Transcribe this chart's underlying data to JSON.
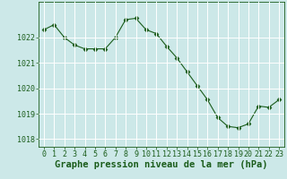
{
  "x": [
    0,
    1,
    2,
    3,
    4,
    5,
    6,
    7,
    8,
    9,
    10,
    11,
    12,
    13,
    14,
    15,
    16,
    17,
    18,
    19,
    20,
    21,
    22,
    23
  ],
  "y": [
    1022.3,
    1022.5,
    1022.0,
    1021.7,
    1021.55,
    1021.55,
    1021.55,
    1022.0,
    1022.7,
    1022.75,
    1022.3,
    1022.15,
    1021.65,
    1021.2,
    1020.65,
    1020.1,
    1019.55,
    1018.85,
    1018.5,
    1018.45,
    1018.6,
    1019.3,
    1019.25,
    1019.55
  ],
  "line_color": "#1a5c1a",
  "marker": "D",
  "marker_size": 2.5,
  "background_color": "#cce8e8",
  "grid_color": "#ffffff",
  "ylabel_ticks": [
    1018,
    1019,
    1020,
    1021,
    1022
  ],
  "xlabel_label": "Graphe pression niveau de la mer (hPa)",
  "xlim": [
    -0.5,
    23.5
  ],
  "ylim": [
    1017.7,
    1023.4
  ],
  "xtick_labels": [
    "0",
    "1",
    "2",
    "3",
    "4",
    "5",
    "6",
    "7",
    "8",
    "9",
    "10",
    "11",
    "12",
    "13",
    "14",
    "15",
    "16",
    "17",
    "18",
    "19",
    "20",
    "21",
    "22",
    "23"
  ],
  "title_color": "#1a5c1a",
  "tick_color": "#1a5c1a",
  "tick_fontsize": 6.0,
  "xlabel_fontsize": 7.5
}
